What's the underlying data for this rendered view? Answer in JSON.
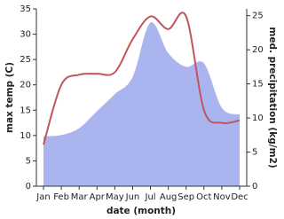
{
  "chart_data": {
    "type": "combo",
    "x_label": "date (month)",
    "y_label": "max temp (C)",
    "y2_label": "med. precipitation (kg/m2)",
    "categories": [
      "Jan",
      "Feb",
      "Mar",
      "Apr",
      "May",
      "Jun",
      "Jul",
      "Aug",
      "Sep",
      "Oct",
      "Nov",
      "Dec"
    ],
    "ylim": [
      0,
      35
    ],
    "yticks": [
      0,
      5,
      10,
      15,
      20,
      25,
      30,
      35
    ],
    "y2lim": [
      0,
      26
    ],
    "y2ticks": [
      0,
      5,
      10,
      15,
      20,
      25
    ],
    "series": [
      {
        "name": "med. precipitation",
        "type": "area",
        "axis": "y2",
        "color": "#aab5f0",
        "values": [
          7.3,
          7.5,
          8.5,
          11,
          13.5,
          16,
          24,
          19.5,
          17.5,
          18,
          11.5,
          10.5
        ]
      },
      {
        "name": "max temp",
        "type": "line",
        "axis": "y",
        "color": "#c0555a",
        "values": [
          8.2,
          20,
          22,
          22.2,
          22.5,
          29,
          33.5,
          31,
          33.5,
          15,
          12.5,
          13
        ]
      }
    ]
  }
}
